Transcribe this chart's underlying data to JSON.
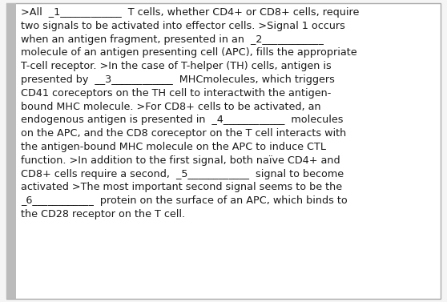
{
  "bg_color": "#f5f5f5",
  "box_bg_color": "#ffffff",
  "border_color": "#aaaaaa",
  "left_bar_color": "#bbbbbb",
  "text_color": "#1a1a1a",
  "font_size": 9.2,
  "font_family": "DejaVu Sans",
  "fig_width": 5.58,
  "fig_height": 3.77,
  "lines": [
    ">All  _1____________  T cells, whether CD4+ or CD8+ cells, require",
    "two signals to be activated into effector cells. >Signal 1 occurs",
    "when an antigen fragment, presented in an  _2____________",
    "molecule of an antigen presenting cell (APC), fills the appropriate",
    "T-cell receptor. >In the case of T-helper (TH) cells, antigen is",
    "presented by  __3____________  MHCmolecules, which triggers",
    "CD41 coreceptors on the TH cell to interactwith the antigen-",
    "bound MHC molecule. >For CD8+ cells to be activated, an",
    "endogenous antigen is presented in  _4____________  molecules",
    "on the APC, and the CD8 coreceptor on the T cell interacts with",
    "the antigen-bound MHC molecule on the APC to induce CTL",
    "function. >In addition to the first signal, both naïve CD4+ and",
    "CD8+ cells require a second,  _5____________  signal to become",
    "activated >The most important second signal seems to be the",
    "_6____________  protein on the surface of an APC, which binds to",
    "the CD28 receptor on the T cell."
  ]
}
